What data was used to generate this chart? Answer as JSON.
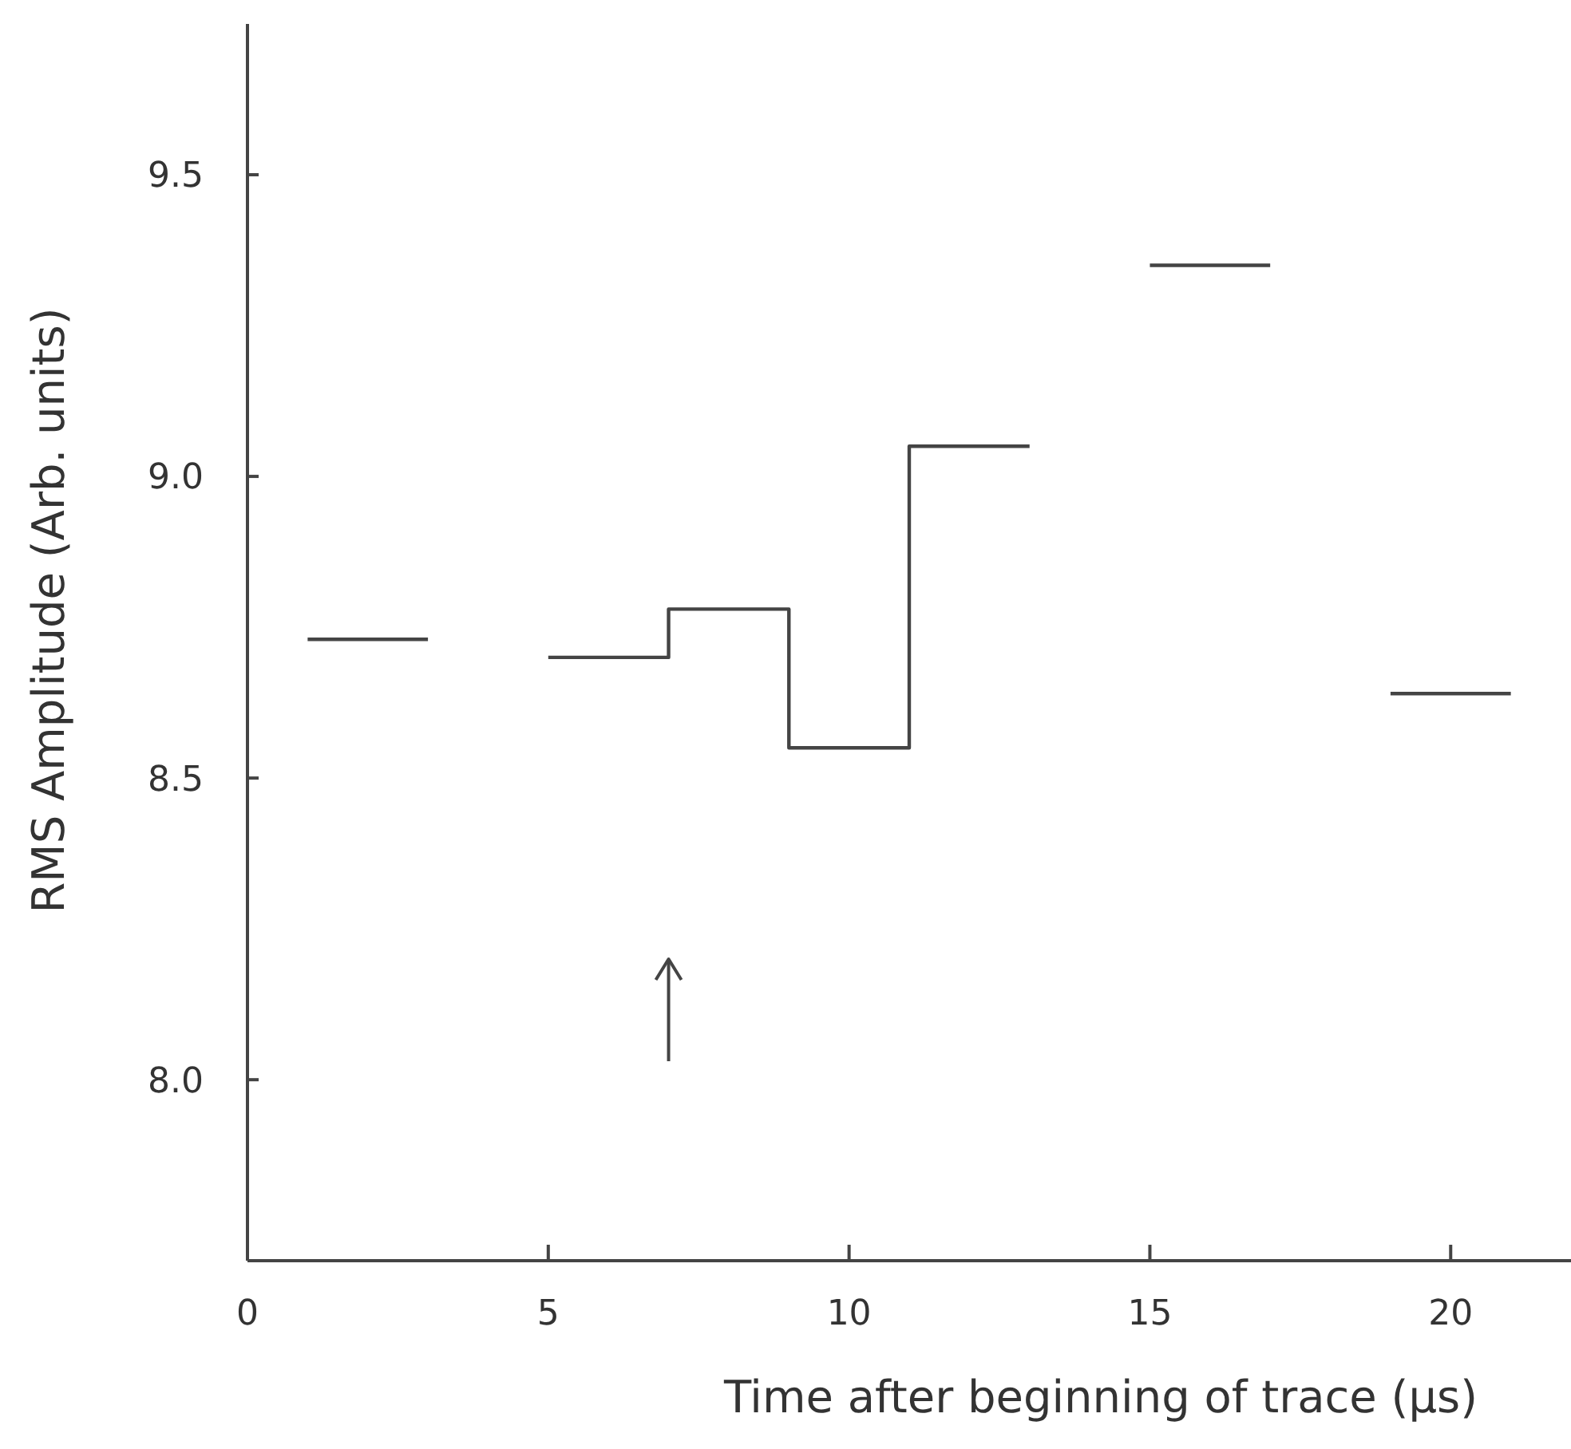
{
  "chart_data": {
    "type": "step",
    "xlabel": "Time after beginning of trace (µs)",
    "ylabel": "RMS Amplitude (Arb. units)",
    "series": [
      {
        "color": "#444444",
        "x": [
          1,
          3
        ],
        "values": [
          8.73,
          8.73
        ]
      },
      {
        "color": "#444444",
        "x": [
          5,
          7,
          9,
          11,
          13
        ],
        "values": [
          8.7,
          8.78,
          8.55,
          9.05,
          9.05
        ]
      },
      {
        "color": "#444444",
        "x": [
          15,
          17
        ],
        "values": [
          9.35,
          9.35
        ]
      },
      {
        "color": "#444444",
        "x": [
          19,
          21
        ],
        "values": [
          8.64,
          8.64
        ]
      }
    ],
    "xlim": [
      0,
      22
    ],
    "xticks": [
      0,
      5,
      10,
      15,
      20
    ],
    "ylim": [
      7.7,
      9.75
    ],
    "yticks": [
      {
        "value": 8,
        "label": "8.0"
      },
      {
        "value": 8.5,
        "label": "8.5"
      },
      {
        "value": 9,
        "label": "9.0"
      },
      {
        "value": 9.5,
        "label": "9.5"
      }
    ],
    "grid": false,
    "marker": "none",
    "line_style": "solid"
  }
}
